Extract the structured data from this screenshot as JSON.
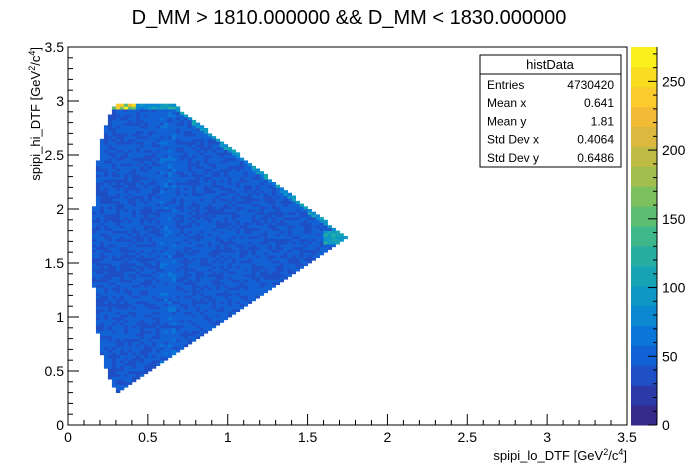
{
  "chart_data": {
    "type": "heatmap",
    "title": "D_MM > 1810.000000 && D_MM < 1830.000000",
    "xlabel": "spipi_lo_DTF [GeV",
    "xlabel_sup1": "2",
    "xlabel_mid": "/c",
    "xlabel_sup2": "4",
    "xlabel_end": "]",
    "ylabel": "spipi_hi_DTF [GeV",
    "ylabel_sup1": "2",
    "ylabel_mid": "/c",
    "ylabel_sup2": "4",
    "ylabel_end": "]",
    "xlim": [
      0,
      3.5
    ],
    "ylim": [
      0,
      3.5
    ],
    "x_ticks": [
      "0",
      "0.5",
      "1",
      "1.5",
      "2",
      "2.5",
      "3",
      "3.5"
    ],
    "y_ticks": [
      "0",
      "0.5",
      "1",
      "1.5",
      "2",
      "2.5",
      "3",
      "3.5"
    ],
    "z_range": [
      0,
      275
    ],
    "z_ticks": [
      "0",
      "50",
      "100",
      "150",
      "200",
      "250"
    ],
    "region": {
      "description_points": [
        [
          0.28,
          0.28
        ],
        [
          1.74,
          1.74
        ],
        [
          0.28,
          2.97
        ]
      ],
      "typical_density": 45,
      "peak_density": 270
    },
    "stats_box": {
      "name": "histData",
      "rows": [
        {
          "label": "Entries",
          "value": "4730420"
        },
        {
          "label": "Mean x",
          "value": "0.641"
        },
        {
          "label": "Mean y",
          "value": "1.81"
        },
        {
          "label": "Std Dev x",
          "value": "0.4064"
        },
        {
          "label": "Std Dev y",
          "value": "0.6486"
        }
      ]
    },
    "palette": [
      "#352a87",
      "#2c3aa8",
      "#1e4fc4",
      "#1262d6",
      "#0b76d9",
      "#0b88d0",
      "#0f97c4",
      "#16a4b5",
      "#28aea0",
      "#3fb78a",
      "#5cbd73",
      "#7dc05f",
      "#a0bf4f",
      "#c0bb45",
      "#dcb83f",
      "#f2bb36",
      "#fbcb2d",
      "#f8dc22",
      "#f9f01c"
    ],
    "grid": false,
    "legend": "right colorbar"
  }
}
